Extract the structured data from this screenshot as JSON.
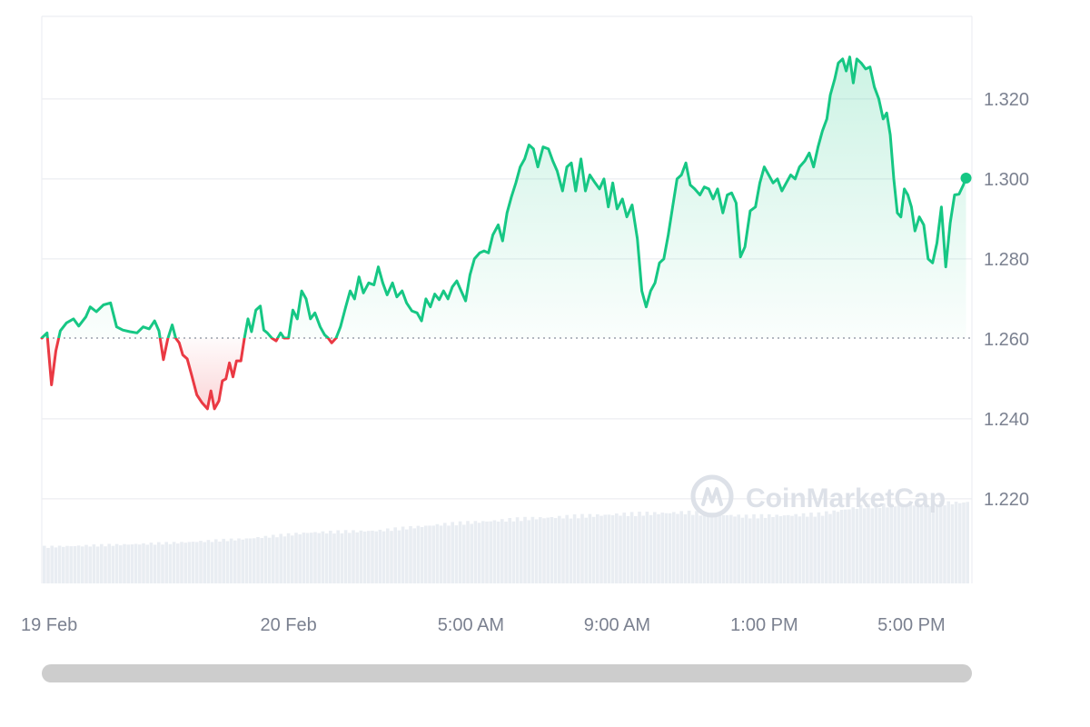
{
  "watermark": {
    "text": "CoinMarketCap",
    "icon": "coinmarketcap-logo-icon"
  },
  "colors": {
    "up": "#16c784",
    "down": "#ea3943",
    "grid": "#eceef2",
    "baseline": "#9aa0ab",
    "volume": "#e9edf2",
    "axis_text": "#7b8190",
    "scrollbar": "#cdcdcd"
  },
  "chart_data": {
    "type": "area",
    "baseline": 1.2602,
    "ylim": [
      1.2,
      1.34
    ],
    "y_ticks": [
      "1.220",
      "1.240",
      "1.260",
      "1.280",
      "1.300",
      "1.320"
    ],
    "x_ticks": [
      {
        "label": "19 Feb",
        "t": 0
      },
      {
        "label": "20 Feb",
        "t": 0.28
      },
      {
        "label": "5:00 AM",
        "t": 0.487
      },
      {
        "label": "9:00 AM",
        "t": 0.653
      },
      {
        "label": "1:00 PM",
        "t": 0.82
      },
      {
        "label": "5:00 PM",
        "t": 0.987
      }
    ],
    "price_points": [
      [
        0.0,
        1.2602
      ],
      [
        0.006,
        1.2615
      ],
      [
        0.011,
        1.2485
      ],
      [
        0.016,
        1.257
      ],
      [
        0.021,
        1.262
      ],
      [
        0.028,
        1.264
      ],
      [
        0.036,
        1.265
      ],
      [
        0.042,
        1.2632
      ],
      [
        0.05,
        1.2655
      ],
      [
        0.055,
        1.268
      ],
      [
        0.062,
        1.2668
      ],
      [
        0.07,
        1.2685
      ],
      [
        0.078,
        1.269
      ],
      [
        0.085,
        1.263
      ],
      [
        0.092,
        1.2622
      ],
      [
        0.1,
        1.2618
      ],
      [
        0.108,
        1.2615
      ],
      [
        0.115,
        1.263
      ],
      [
        0.122,
        1.2625
      ],
      [
        0.128,
        1.2645
      ],
      [
        0.133,
        1.262
      ],
      [
        0.138,
        1.2548
      ],
      [
        0.143,
        1.26
      ],
      [
        0.148,
        1.2635
      ],
      [
        0.152,
        1.2602
      ],
      [
        0.156,
        1.259
      ],
      [
        0.16,
        1.256
      ],
      [
        0.165,
        1.255
      ],
      [
        0.17,
        1.251
      ],
      [
        0.176,
        1.246
      ],
      [
        0.182,
        1.244
      ],
      [
        0.188,
        1.2425
      ],
      [
        0.192,
        1.247
      ],
      [
        0.196,
        1.2425
      ],
      [
        0.201,
        1.2445
      ],
      [
        0.205,
        1.2495
      ],
      [
        0.209,
        1.25
      ],
      [
        0.213,
        1.254
      ],
      [
        0.217,
        1.2505
      ],
      [
        0.221,
        1.2545
      ],
      [
        0.226,
        1.2545
      ],
      [
        0.23,
        1.2602
      ],
      [
        0.234,
        1.265
      ],
      [
        0.238,
        1.2618
      ],
      [
        0.243,
        1.2672
      ],
      [
        0.248,
        1.2682
      ],
      [
        0.252,
        1.2622
      ],
      [
        0.256,
        1.2615
      ],
      [
        0.261,
        1.2602
      ],
      [
        0.266,
        1.2595
      ],
      [
        0.271,
        1.2615
      ],
      [
        0.275,
        1.2602
      ],
      [
        0.28,
        1.2602
      ],
      [
        0.285,
        1.2672
      ],
      [
        0.29,
        1.265
      ],
      [
        0.295,
        1.272
      ],
      [
        0.3,
        1.27
      ],
      [
        0.305,
        1.265
      ],
      [
        0.31,
        1.2665
      ],
      [
        0.316,
        1.263
      ],
      [
        0.321,
        1.261
      ],
      [
        0.325,
        1.2602
      ],
      [
        0.329,
        1.259
      ],
      [
        0.334,
        1.2602
      ],
      [
        0.339,
        1.263
      ],
      [
        0.345,
        1.268
      ],
      [
        0.35,
        1.272
      ],
      [
        0.355,
        1.27
      ],
      [
        0.36,
        1.2755
      ],
      [
        0.365,
        1.2715
      ],
      [
        0.371,
        1.274
      ],
      [
        0.377,
        1.2735
      ],
      [
        0.382,
        1.278
      ],
      [
        0.387,
        1.274
      ],
      [
        0.392,
        1.271
      ],
      [
        0.398,
        1.274
      ],
      [
        0.403,
        1.2705
      ],
      [
        0.409,
        1.272
      ],
      [
        0.414,
        1.269
      ],
      [
        0.42,
        1.267
      ],
      [
        0.426,
        1.2665
      ],
      [
        0.431,
        1.2645
      ],
      [
        0.436,
        1.27
      ],
      [
        0.441,
        1.268
      ],
      [
        0.446,
        1.2712
      ],
      [
        0.451,
        1.2698
      ],
      [
        0.456,
        1.272
      ],
      [
        0.461,
        1.27
      ],
      [
        0.466,
        1.273
      ],
      [
        0.471,
        1.2745
      ],
      [
        0.476,
        1.272
      ],
      [
        0.481,
        1.2695
      ],
      [
        0.486,
        1.276
      ],
      [
        0.491,
        1.28
      ],
      [
        0.497,
        1.2815
      ],
      [
        0.502,
        1.282
      ],
      [
        0.507,
        1.2815
      ],
      [
        0.512,
        1.286
      ],
      [
        0.518,
        1.2885
      ],
      [
        0.523,
        1.2845
      ],
      [
        0.528,
        1.2915
      ],
      [
        0.533,
        1.2955
      ],
      [
        0.538,
        1.299
      ],
      [
        0.543,
        1.303
      ],
      [
        0.548,
        1.305
      ],
      [
        0.553,
        1.3085
      ],
      [
        0.558,
        1.3075
      ],
      [
        0.563,
        1.303
      ],
      [
        0.569,
        1.308
      ],
      [
        0.575,
        1.3075
      ],
      [
        0.58,
        1.3045
      ],
      [
        0.585,
        1.302
      ],
      [
        0.591,
        1.297
      ],
      [
        0.596,
        1.303
      ],
      [
        0.601,
        1.304
      ],
      [
        0.606,
        1.297
      ],
      [
        0.612,
        1.305
      ],
      [
        0.617,
        1.297
      ],
      [
        0.622,
        1.301
      ],
      [
        0.628,
        1.299
      ],
      [
        0.633,
        1.2975
      ],
      [
        0.638,
        1.3
      ],
      [
        0.643,
        1.293
      ],
      [
        0.648,
        1.299
      ],
      [
        0.653,
        1.2925
      ],
      [
        0.659,
        1.295
      ],
      [
        0.664,
        1.2905
      ],
      [
        0.67,
        1.2935
      ],
      [
        0.676,
        1.285
      ],
      [
        0.681,
        1.272
      ],
      [
        0.686,
        1.268
      ],
      [
        0.691,
        1.272
      ],
      [
        0.696,
        1.274
      ],
      [
        0.701,
        1.279
      ],
      [
        0.706,
        1.28
      ],
      [
        0.711,
        1.286
      ],
      [
        0.716,
        1.293
      ],
      [
        0.721,
        1.3
      ],
      [
        0.726,
        1.301
      ],
      [
        0.731,
        1.304
      ],
      [
        0.736,
        1.2985
      ],
      [
        0.741,
        1.2975
      ],
      [
        0.747,
        1.296
      ],
      [
        0.752,
        1.298
      ],
      [
        0.757,
        1.2975
      ],
      [
        0.762,
        1.295
      ],
      [
        0.767,
        1.2975
      ],
      [
        0.773,
        1.2915
      ],
      [
        0.778,
        1.296
      ],
      [
        0.783,
        1.2965
      ],
      [
        0.788,
        1.294
      ],
      [
        0.793,
        1.2805
      ],
      [
        0.798,
        1.283
      ],
      [
        0.804,
        1.292
      ],
      [
        0.81,
        1.293
      ],
      [
        0.815,
        1.299
      ],
      [
        0.82,
        1.303
      ],
      [
        0.825,
        1.301
      ],
      [
        0.83,
        1.299
      ],
      [
        0.835,
        1.3
      ],
      [
        0.84,
        1.297
      ],
      [
        0.845,
        1.299
      ],
      [
        0.85,
        1.301
      ],
      [
        0.855,
        1.3
      ],
      [
        0.86,
        1.303
      ],
      [
        0.866,
        1.3045
      ],
      [
        0.871,
        1.3065
      ],
      [
        0.876,
        1.303
      ],
      [
        0.881,
        1.308
      ],
      [
        0.886,
        1.312
      ],
      [
        0.891,
        1.315
      ],
      [
        0.895,
        1.321
      ],
      [
        0.9,
        1.325
      ],
      [
        0.904,
        1.329
      ],
      [
        0.909,
        1.33
      ],
      [
        0.913,
        1.327
      ],
      [
        0.917,
        1.3305
      ],
      [
        0.921,
        1.324
      ],
      [
        0.925,
        1.33
      ],
      [
        0.93,
        1.329
      ],
      [
        0.935,
        1.3275
      ],
      [
        0.94,
        1.328
      ],
      [
        0.945,
        1.323
      ],
      [
        0.95,
        1.32
      ],
      [
        0.955,
        1.315
      ],
      [
        0.959,
        1.3165
      ],
      [
        0.963,
        1.311
      ],
      [
        0.967,
        1.3
      ],
      [
        0.971,
        1.2915
      ],
      [
        0.975,
        1.2905
      ],
      [
        0.979,
        1.2975
      ],
      [
        0.983,
        1.296
      ],
      [
        0.987,
        1.293
      ],
      [
        0.991,
        1.287
      ],
      [
        0.996,
        1.2905
      ],
      [
        1.001,
        1.2885
      ],
      [
        1.006,
        1.28
      ],
      [
        1.011,
        1.279
      ],
      [
        1.016,
        1.284
      ],
      [
        1.021,
        1.293
      ],
      [
        1.026,
        1.278
      ],
      [
        1.031,
        1.289
      ],
      [
        1.036,
        1.296
      ],
      [
        1.041,
        1.2962
      ],
      [
        1.046,
        1.2985
      ],
      [
        1.049,
        1.3002
      ]
    ],
    "volume": {
      "relative_values": [
        [
          0.0,
          0.18
        ],
        [
          0.08,
          0.19
        ],
        [
          0.15,
          0.2
        ],
        [
          0.23,
          0.22
        ],
        [
          0.3,
          0.25
        ],
        [
          0.38,
          0.26
        ],
        [
          0.45,
          0.29
        ],
        [
          0.55,
          0.32
        ],
        [
          0.65,
          0.34
        ],
        [
          0.73,
          0.35
        ],
        [
          0.8,
          0.33
        ],
        [
          0.88,
          0.34
        ],
        [
          0.93,
          0.38
        ],
        [
          1.049,
          0.4
        ]
      ]
    }
  }
}
